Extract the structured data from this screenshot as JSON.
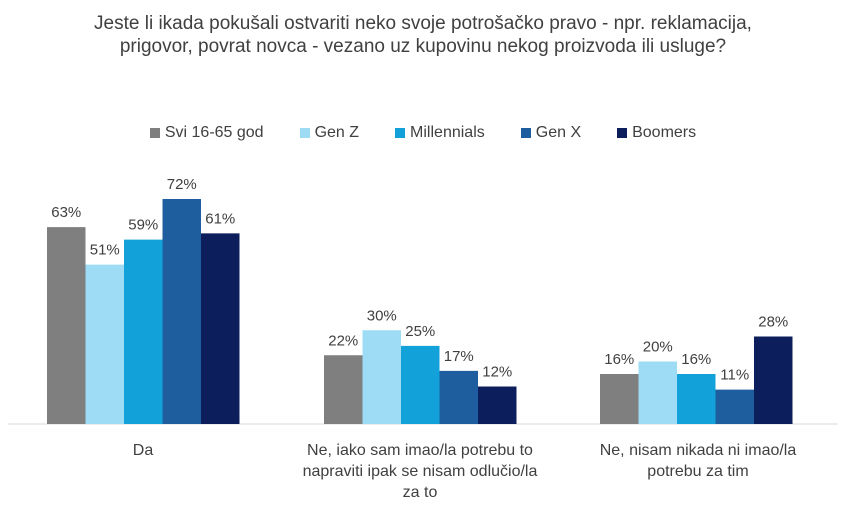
{
  "chart_data": {
    "type": "bar",
    "title": "Jeste li ikada pokušali ostvariti neko svoje potrošačko pravo - npr. reklamacija, prigovor, povrat novca - vezano uz kupovinu nekog proizvoda ili usluge?",
    "categories": [
      "Da",
      "Ne, iako sam imao/la potrebu to napraviti ipak se nisam odlučio/la za to",
      "Ne, nisam nikada ni imao/la potrebu za tim"
    ],
    "series": [
      {
        "name": "Svi 16-65 god",
        "color": "#7f7f7f",
        "values": [
          63,
          22,
          16
        ],
        "labels": [
          "63%",
          "22%",
          "16%"
        ]
      },
      {
        "name": "Gen Z",
        "color": "#9edcf6",
        "values": [
          51,
          30,
          20
        ],
        "labels": [
          "51%",
          "30%",
          "20%"
        ]
      },
      {
        "name": "Millennials",
        "color": "#12a1d9",
        "values": [
          59,
          25,
          16
        ],
        "labels": [
          "59%",
          "25%",
          "16%"
        ]
      },
      {
        "name": "Gen X",
        "color": "#1f5e9e",
        "values": [
          72,
          17,
          11
        ],
        "labels": [
          "72%",
          "17%",
          "11%"
        ]
      },
      {
        "name": "Boomers",
        "color": "#0c1f5c",
        "values": [
          61,
          12,
          28
        ],
        "labels": [
          "61%",
          "12%",
          "28%"
        ]
      }
    ],
    "xlabel": "",
    "ylabel": "",
    "ylim": [
      0,
      72
    ],
    "grid": false,
    "legend_position": "top"
  }
}
